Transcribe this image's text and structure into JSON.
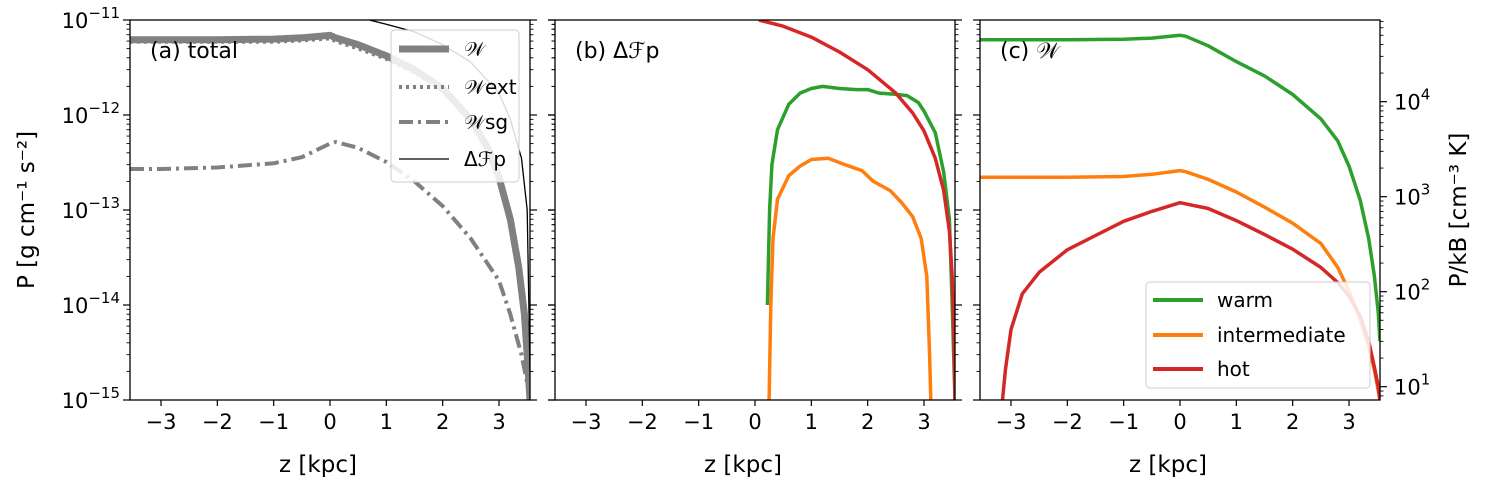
{
  "chart_data": [
    {
      "type": "line",
      "panel_label": "(a) total",
      "xlabel": "z [kpc]",
      "ylabel": "P [g cm⁻¹ s⁻²]",
      "xlim": [
        -3.55,
        3.55
      ],
      "ylim": [
        1e-15,
        1e-11
      ],
      "yscale": "log",
      "xticks": [
        -3,
        -2,
        -1,
        0,
        1,
        2,
        3
      ],
      "xtick_labels": [
        "−3",
        "−2",
        "−1",
        "0",
        "1",
        "2",
        "3"
      ],
      "yticks": [
        1e-15,
        1e-14,
        1e-13,
        1e-12,
        1e-11
      ],
      "ytick_labels": [
        "10",
        "10",
        "10",
        "10",
        "10"
      ],
      "ytick_exponents": [
        "−15",
        "−14",
        "−13",
        "−12",
        "−11"
      ],
      "legend": "top-right",
      "series": [
        {
          "name": "𝒲",
          "color": "#808080",
          "style": "solid-thick",
          "x": [
            -3.55,
            -3.0,
            -2.0,
            -1.0,
            -0.5,
            0.0,
            0.1,
            0.5,
            1.0,
            1.5,
            2.0,
            2.5,
            2.8,
            3.0,
            3.2,
            3.35,
            3.45,
            3.5,
            3.55
          ],
          "y": [
            6.2e-12,
            6.2e-12,
            6.2e-12,
            6.3e-12,
            6.5e-12,
            6.9e-12,
            6.5e-12,
            5.5e-12,
            4.2e-12,
            3e-12,
            1.9e-12,
            9e-13,
            4.5e-13,
            2.2e-13,
            8e-14,
            2.5e-14,
            8e-15,
            3e-15,
            1e-15
          ]
        },
        {
          "name": "𝒲ext",
          "color": "#808080",
          "style": "dotted",
          "x": [
            -3.55,
            -3.0,
            -2.0,
            -1.0,
            -0.5,
            0.0,
            0.1,
            0.5,
            1.0,
            1.5,
            2.0,
            2.5,
            2.8,
            3.0,
            3.2,
            3.35,
            3.45,
            3.5,
            3.55
          ],
          "y": [
            5.9e-12,
            5.9e-12,
            5.9e-12,
            5.9e-12,
            6.1e-12,
            6.4e-12,
            6e-12,
            5e-12,
            3.9e-12,
            2.8e-12,
            1.8e-12,
            8.5e-13,
            4.3e-13,
            2.1e-13,
            7.6e-14,
            2.4e-14,
            7.6e-15,
            2.9e-15,
            1e-15
          ]
        },
        {
          "name": "𝒲sg",
          "color": "#808080",
          "style": "dashdot",
          "x": [
            -3.55,
            -3.0,
            -2.0,
            -1.0,
            -0.5,
            0.0,
            0.1,
            0.5,
            1.0,
            1.5,
            2.0,
            2.5,
            3.0,
            3.2,
            3.4,
            3.5,
            3.55
          ],
          "y": [
            2.7e-13,
            2.7e-13,
            2.8e-13,
            3.1e-13,
            3.6e-13,
            5e-13,
            5.2e-13,
            4.5e-13,
            3.2e-13,
            2e-13,
            1.1e-13,
            5e-14,
            1.8e-14,
            8e-15,
            3e-15,
            1.5e-15,
            1e-15
          ]
        },
        {
          "name": "Δℱp",
          "color": "#000000",
          "style": "solid-thin",
          "x": [
            0.7,
            1.0,
            1.5,
            2.0,
            2.5,
            3.0,
            3.2,
            3.4,
            3.5,
            3.55
          ],
          "y": [
            1e-11,
            9e-12,
            7.5e-12,
            5.5e-12,
            3.6e-12,
            1.7e-12,
            9e-13,
            3.5e-13,
            1e-13,
            2e-15
          ]
        }
      ]
    },
    {
      "type": "line",
      "panel_label": "(b) Δℱp",
      "xlabel": "z [kpc]",
      "xlim": [
        -3.55,
        3.55
      ],
      "ylim": [
        1e-15,
        1e-11
      ],
      "yscale": "log",
      "xticks": [
        -3,
        -2,
        -1,
        0,
        1,
        2,
        3
      ],
      "xtick_labels": [
        "−3",
        "−2",
        "−1",
        "0",
        "1",
        "2",
        "3"
      ],
      "series": [
        {
          "name": "warm",
          "color": "#2ca02c",
          "x": [
            0.22,
            0.26,
            0.3,
            0.4,
            0.6,
            0.8,
            1.0,
            1.2,
            1.5,
            1.8,
            2.0,
            2.2,
            2.5,
            2.7,
            2.9,
            3.0,
            3.2,
            3.35,
            3.45,
            3.5,
            3.55
          ],
          "y": [
            1e-14,
            1e-13,
            3e-13,
            7e-13,
            1.3e-12,
            1.7e-12,
            1.9e-12,
            2e-12,
            1.9e-12,
            1.85e-12,
            1.85e-12,
            1.7e-12,
            1.65e-12,
            1.6e-12,
            1.35e-12,
            1.1e-12,
            6.5e-13,
            2.5e-13,
            8e-14,
            1e-14,
            1e-15
          ]
        },
        {
          "name": "intermediate",
          "color": "#ff7f0e",
          "x": [
            0.25,
            0.28,
            0.32,
            0.4,
            0.6,
            0.8,
            1.0,
            1.3,
            1.6,
            1.9,
            2.1,
            2.4,
            2.6,
            2.8,
            2.95,
            3.05,
            3.1,
            3.12
          ],
          "y": [
            1e-15,
            1e-14,
            5e-14,
            1.3e-13,
            2.3e-13,
            2.9e-13,
            3.4e-13,
            3.5e-13,
            3e-13,
            2.6e-13,
            2e-13,
            1.6e-13,
            1.2e-13,
            8.5e-14,
            5e-14,
            2e-14,
            3e-15,
            1e-15
          ]
        },
        {
          "name": "hot",
          "color": "#d62728",
          "x": [
            0.07,
            0.5,
            1.0,
            1.5,
            2.0,
            2.5,
            2.8,
            3.0,
            3.2,
            3.35,
            3.45,
            3.5,
            3.53,
            3.55
          ],
          "y": [
            1e-11,
            8.6e-12,
            6.6e-12,
            4.6e-12,
            3e-12,
            1.7e-12,
            1.05e-12,
            6.8e-13,
            3.5e-13,
            1.6e-13,
            6e-14,
            2e-14,
            5e-15,
            1e-15
          ]
        }
      ]
    },
    {
      "type": "line",
      "panel_label": "(c) 𝒲",
      "xlabel": "z [kpc]",
      "ylabel": "P/kB [cm⁻³ K]",
      "xlim": [
        -3.55,
        3.55
      ],
      "ylim": [
        7.24,
        72400
      ],
      "yscale": "log",
      "xticks": [
        -3,
        -2,
        -1,
        0,
        1,
        2,
        3
      ],
      "xtick_labels": [
        "−3",
        "−2",
        "−1",
        "0",
        "1",
        "2",
        "3"
      ],
      "yticks": [
        10,
        100,
        1000,
        10000
      ],
      "ytick_labels": [
        "10",
        "10",
        "10",
        "10"
      ],
      "ytick_exponents": [
        "1",
        "2",
        "3",
        "4"
      ],
      "legend": "lower-right",
      "series": [
        {
          "name": "warm",
          "color": "#2ca02c",
          "x": [
            -3.55,
            -3.0,
            -2.0,
            -1.0,
            -0.5,
            0.0,
            0.1,
            0.5,
            1.0,
            1.5,
            2.0,
            2.5,
            2.8,
            3.0,
            3.2,
            3.35,
            3.45,
            3.52,
            3.55
          ],
          "y": [
            44900,
            44900,
            44900,
            45300,
            46700,
            50000,
            48900,
            38700,
            26400,
            18700,
            11900,
            6600,
            3870,
            2100,
            910,
            362,
            145,
            60,
            30
          ]
        },
        {
          "name": "intermediate",
          "color": "#ff7f0e",
          "x": [
            -3.55,
            -3.0,
            -2.0,
            -1.0,
            -0.5,
            0.0,
            0.1,
            0.5,
            1.0,
            1.5,
            2.0,
            2.5,
            2.8,
            3.0,
            3.2,
            3.35,
            3.45,
            3.52,
            3.55
          ],
          "y": [
            1600,
            1600,
            1600,
            1630,
            1720,
            1880,
            1830,
            1520,
            1120,
            777,
            526,
            322,
            180,
            102,
            50,
            26,
            15,
            9,
            7
          ]
        },
        {
          "name": "hot",
          "color": "#d62728",
          "x": [
            -3.15,
            -3.1,
            -3.0,
            -2.8,
            -2.5,
            -2.0,
            -1.5,
            -1.0,
            -0.5,
            0.0,
            0.5,
            1.0,
            1.5,
            2.0,
            2.5,
            2.8,
            3.0,
            3.2,
            3.35,
            3.45,
            3.52,
            3.55
          ],
          "y": [
            7.24,
            15,
            40,
            95,
            160,
            276,
            390,
            550,
            700,
            864,
            750,
            560,
            400,
            280,
            180,
            125,
            90,
            55,
            30,
            16,
            10,
            7.24
          ]
        }
      ]
    }
  ]
}
